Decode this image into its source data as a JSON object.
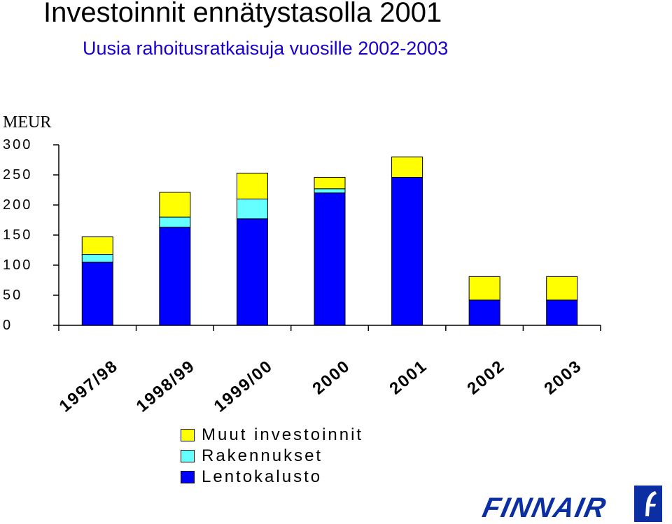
{
  "title": "Investoinnit ennätystasolla 2001",
  "subtitle": "Uusia rahoitusratkaisuja vuosille 2002-2003",
  "unit_label": "MEUR",
  "colors": {
    "muut": "#ffff00",
    "rakennukset": "#66ffff",
    "lentokalusto": "#0000ff",
    "subtitle": "#1a00cc",
    "logo": "#0b2fa3"
  },
  "chart_data": {
    "type": "bar",
    "stacked": true,
    "categories": [
      "1997/98",
      "1998/99",
      "1999/00",
      "2000",
      "2001",
      "2002",
      "2003"
    ],
    "series": [
      {
        "name": "Lentokalusto",
        "values": [
          105,
          163,
          177,
          220,
          246,
          42,
          42
        ]
      },
      {
        "name": "Rakennukset",
        "values": [
          13,
          17,
          33,
          7,
          0,
          0,
          0
        ]
      },
      {
        "name": "Muut investoinnit",
        "values": [
          29,
          41,
          43,
          19,
          34,
          39,
          39
        ]
      }
    ],
    "ylim": [
      0,
      300
    ],
    "yticks": [
      "0",
      "50",
      "100",
      "150",
      "200",
      "250",
      "300"
    ],
    "grid": false,
    "legend_position": "bottom"
  },
  "legend": [
    {
      "label": "Muut investoinnit",
      "color": "#ffff00"
    },
    {
      "label": "Rakennukset",
      "color": "#66ffff"
    },
    {
      "label": "Lentokalusto",
      "color": "#0000ff"
    }
  ],
  "logo": {
    "text": "FINNAIR"
  }
}
